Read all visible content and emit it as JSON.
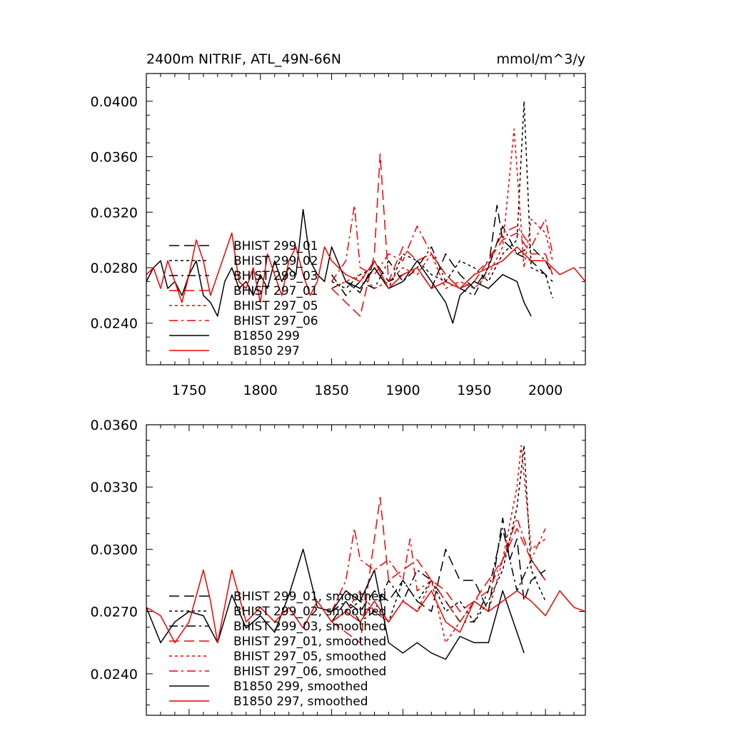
{
  "chart_data": [
    {
      "type": "line",
      "title_left": "2400m NITRIF, ATL_49N-66N",
      "title_right": "mmol/m^3/y",
      "xlim": [
        1720,
        2028
      ],
      "ylim": [
        0.021,
        0.042
      ],
      "xticks": [
        1750,
        1800,
        1850,
        1900,
        1950,
        2000
      ],
      "xtick_labels": [
        "1750",
        "1800",
        "1850",
        "1900",
        "1950",
        "2000"
      ],
      "yticks": [
        0.024,
        0.028,
        0.032,
        0.036,
        0.04
      ],
      "ytick_labels": [
        "0.0240",
        "0.0280",
        "0.0320",
        "0.0360",
        "0.0400"
      ],
      "legend_position": "lower-left",
      "series": [
        {
          "name": "BHIST 299_01",
          "color": "#000000",
          "dash": "long-dash",
          "x": [
            1850,
            1860,
            1870,
            1880,
            1890,
            1900,
            1910,
            1920,
            1930,
            1940,
            1950,
            1960,
            1966,
            1970,
            1980,
            1990,
            2000,
            2005
          ],
          "y": [
            0.0265,
            0.027,
            0.0262,
            0.0285,
            0.027,
            0.0275,
            0.028,
            0.0265,
            0.029,
            0.0275,
            0.0265,
            0.028,
            0.0325,
            0.03,
            0.029,
            0.0285,
            0.0275,
            0.027
          ]
        },
        {
          "name": "BHIST 299_02",
          "color": "#000000",
          "dash": "short-dash",
          "x": [
            1850,
            1860,
            1870,
            1880,
            1890,
            1900,
            1910,
            1920,
            1930,
            1940,
            1950,
            1960,
            1970,
            1980,
            1985,
            1990,
            2000,
            2005
          ],
          "y": [
            0.027,
            0.0265,
            0.0275,
            0.028,
            0.0265,
            0.029,
            0.0285,
            0.0275,
            0.027,
            0.0285,
            0.028,
            0.027,
            0.029,
            0.03,
            0.04,
            0.028,
            0.0275,
            0.0258
          ]
        },
        {
          "name": "BHIST 299_03",
          "color": "#000000",
          "dash": "dash-dot",
          "x": [
            1850,
            1860,
            1870,
            1880,
            1890,
            1900,
            1910,
            1920,
            1930,
            1940,
            1950,
            1960,
            1970,
            1980,
            1990,
            2000,
            2005
          ],
          "y": [
            0.0275,
            0.026,
            0.027,
            0.0265,
            0.0285,
            0.027,
            0.028,
            0.0295,
            0.027,
            0.0265,
            0.026,
            0.028,
            0.031,
            0.029,
            0.0295,
            0.0285,
            0.0275
          ]
        },
        {
          "name": "BHIST 297_01",
          "color": "#ee0000",
          "dash": "long-dash",
          "x": [
            1850,
            1860,
            1865,
            1870,
            1880,
            1884,
            1890,
            1900,
            1910,
            1920,
            1930,
            1940,
            1950,
            1960,
            1970,
            1980,
            1990,
            2000,
            2005
          ],
          "y": [
            0.0265,
            0.0255,
            0.025,
            0.0245,
            0.029,
            0.0362,
            0.027,
            0.0295,
            0.0285,
            0.029,
            0.0275,
            0.0265,
            0.027,
            0.0285,
            0.03,
            0.0305,
            0.029,
            0.029,
            0.0275
          ]
        },
        {
          "name": "BHIST 297_05",
          "color": "#ee0000",
          "dash": "short-dash",
          "x": [
            1850,
            1860,
            1870,
            1880,
            1890,
            1900,
            1910,
            1920,
            1930,
            1940,
            1950,
            1960,
            1970,
            1978,
            1985,
            1990,
            2000,
            2005
          ],
          "y": [
            0.0265,
            0.027,
            0.0275,
            0.0265,
            0.027,
            0.028,
            0.0275,
            0.029,
            0.0265,
            0.027,
            0.0265,
            0.0275,
            0.0295,
            0.038,
            0.028,
            0.0315,
            0.0305,
            0.0285
          ]
        },
        {
          "name": "BHIST 297_06",
          "color": "#ee0000",
          "dash": "dash-dot",
          "x": [
            1850,
            1860,
            1866,
            1870,
            1880,
            1890,
            1900,
            1910,
            1920,
            1930,
            1940,
            1950,
            1960,
            1970,
            1980,
            1990,
            2000,
            2005
          ],
          "y": [
            0.027,
            0.0285,
            0.0325,
            0.028,
            0.0275,
            0.029,
            0.0285,
            0.031,
            0.029,
            0.0275,
            0.0265,
            0.0275,
            0.0285,
            0.0305,
            0.031,
            0.0295,
            0.0315,
            0.029
          ]
        },
        {
          "name": "B1850 299",
          "color": "#000000",
          "dash": "solid",
          "x": [
            1720,
            1725,
            1730,
            1735,
            1740,
            1745,
            1750,
            1755,
            1760,
            1765,
            1770,
            1775,
            1780,
            1785,
            1790,
            1795,
            1800,
            1805,
            1810,
            1815,
            1820,
            1825,
            1830,
            1835,
            1840,
            1845,
            1850,
            1860,
            1870,
            1880,
            1890,
            1900,
            1910,
            1920,
            1930,
            1935,
            1940,
            1950,
            1960,
            1970,
            1980,
            1985,
            1990
          ],
          "y": [
            0.027,
            0.028,
            0.0285,
            0.0265,
            0.027,
            0.026,
            0.0275,
            0.0285,
            0.026,
            0.0255,
            0.0245,
            0.027,
            0.028,
            0.0265,
            0.027,
            0.026,
            0.0275,
            0.0265,
            0.0285,
            0.027,
            0.028,
            0.0275,
            0.0322,
            0.0285,
            0.0275,
            0.027,
            0.0295,
            0.027,
            0.0265,
            0.028,
            0.0265,
            0.027,
            0.0285,
            0.027,
            0.0255,
            0.024,
            0.026,
            0.027,
            0.0265,
            0.0275,
            0.027,
            0.0255,
            0.0245
          ]
        },
        {
          "name": "B1850 297",
          "color": "#ee0000",
          "dash": "solid",
          "x": [
            1720,
            1725,
            1730,
            1735,
            1740,
            1745,
            1750,
            1755,
            1760,
            1765,
            1770,
            1775,
            1780,
            1785,
            1790,
            1795,
            1800,
            1805,
            1810,
            1815,
            1820,
            1825,
            1830,
            1835,
            1840,
            1845,
            1850,
            1860,
            1870,
            1880,
            1890,
            1900,
            1910,
            1920,
            1930,
            1940,
            1950,
            1960,
            1970,
            1980,
            1990,
            2000,
            2010,
            2020,
            2028
          ],
          "y": [
            0.0275,
            0.028,
            0.0265,
            0.0285,
            0.027,
            0.0255,
            0.0275,
            0.03,
            0.0285,
            0.026,
            0.0275,
            0.029,
            0.0305,
            0.027,
            0.0265,
            0.028,
            0.0255,
            0.029,
            0.0275,
            0.026,
            0.0285,
            0.0295,
            0.0275,
            0.026,
            0.027,
            0.0295,
            0.0285,
            0.0275,
            0.027,
            0.0285,
            0.0265,
            0.0275,
            0.028,
            0.0265,
            0.027,
            0.0265,
            0.0275,
            0.028,
            0.0285,
            0.0295,
            0.0285,
            0.0285,
            0.0275,
            0.028,
            0.027
          ]
        }
      ]
    },
    {
      "type": "line",
      "xlim": [
        1720,
        2028
      ],
      "ylim": [
        0.022,
        0.036
      ],
      "xticks": [
        1750,
        1800,
        1850,
        1900,
        1950,
        2000
      ],
      "yticks": [
        0.024,
        0.027,
        0.03,
        0.033,
        0.036
      ],
      "ytick_labels": [
        "0.0240",
        "0.0270",
        "0.0300",
        "0.0330",
        "0.0360"
      ],
      "legend_position": "lower-left",
      "series": [
        {
          "name": "BHIST 299_01, smoothed",
          "color": "#000000",
          "dash": "long-dash",
          "x": [
            1850,
            1860,
            1870,
            1880,
            1890,
            1900,
            1910,
            1920,
            1930,
            1940,
            1950,
            1960,
            1970,
            1975,
            1980,
            1985,
            1990,
            2000
          ],
          "y": [
            0.0265,
            0.0275,
            0.027,
            0.028,
            0.0275,
            0.0285,
            0.0275,
            0.027,
            0.03,
            0.0285,
            0.0285,
            0.027,
            0.0315,
            0.0295,
            0.0305,
            0.0275,
            0.0285,
            0.029
          ]
        },
        {
          "name": "BHIST 299_02, smoothed",
          "color": "#000000",
          "dash": "short-dash",
          "x": [
            1850,
            1860,
            1870,
            1880,
            1890,
            1900,
            1910,
            1920,
            1930,
            1940,
            1950,
            1960,
            1970,
            1980,
            1985,
            1990,
            2000
          ],
          "y": [
            0.0265,
            0.027,
            0.0275,
            0.027,
            0.0265,
            0.0285,
            0.0275,
            0.0285,
            0.027,
            0.0275,
            0.0265,
            0.0275,
            0.029,
            0.032,
            0.035,
            0.029,
            0.0275
          ]
        },
        {
          "name": "BHIST 299_03, smoothed",
          "color": "#000000",
          "dash": "dash-dot",
          "x": [
            1850,
            1860,
            1870,
            1880,
            1890,
            1900,
            1910,
            1920,
            1930,
            1940,
            1950,
            1960,
            1970,
            1980,
            1990,
            2000
          ],
          "y": [
            0.027,
            0.0275,
            0.0265,
            0.027,
            0.0285,
            0.0275,
            0.029,
            0.0285,
            0.0275,
            0.0265,
            0.0265,
            0.028,
            0.031,
            0.028,
            0.0295,
            0.0285
          ]
        },
        {
          "name": "BHIST 297_01, smoothed",
          "color": "#ee0000",
          "dash": "long-dash",
          "x": [
            1850,
            1860,
            1870,
            1875,
            1884,
            1890,
            1900,
            1910,
            1920,
            1930,
            1940,
            1950,
            1960,
            1970,
            1980,
            1990,
            2000
          ],
          "y": [
            0.0265,
            0.026,
            0.0255,
            0.028,
            0.0325,
            0.0285,
            0.029,
            0.0295,
            0.0285,
            0.028,
            0.027,
            0.0275,
            0.0285,
            0.0295,
            0.031,
            0.0295,
            0.0285
          ]
        },
        {
          "name": "BHIST 297_05, smoothed",
          "color": "#ee0000",
          "dash": "short-dash",
          "x": [
            1850,
            1860,
            1870,
            1880,
            1890,
            1900,
            1910,
            1920,
            1930,
            1940,
            1950,
            1960,
            1970,
            1980,
            1983,
            1990,
            2000
          ],
          "y": [
            0.0265,
            0.027,
            0.028,
            0.027,
            0.0265,
            0.0275,
            0.027,
            0.0285,
            0.0255,
            0.0265,
            0.0275,
            0.027,
            0.0295,
            0.033,
            0.035,
            0.03,
            0.0305
          ]
        },
        {
          "name": "BHIST 297_06, smoothed",
          "color": "#ee0000",
          "dash": "dash-dot",
          "x": [
            1850,
            1860,
            1866,
            1870,
            1880,
            1890,
            1900,
            1905,
            1910,
            1920,
            1930,
            1940,
            1950,
            1960,
            1970,
            1980,
            1990,
            2000
          ],
          "y": [
            0.027,
            0.0285,
            0.031,
            0.0295,
            0.029,
            0.0295,
            0.0285,
            0.0305,
            0.028,
            0.0285,
            0.0275,
            0.0265,
            0.0275,
            0.028,
            0.0295,
            0.0315,
            0.0295,
            0.031
          ]
        },
        {
          "name": "B1850 299, smoothed",
          "color": "#000000",
          "dash": "solid",
          "x": [
            1720,
            1730,
            1740,
            1750,
            1760,
            1770,
            1780,
            1790,
            1800,
            1810,
            1820,
            1830,
            1840,
            1850,
            1860,
            1870,
            1880,
            1890,
            1900,
            1910,
            1920,
            1930,
            1940,
            1950,
            1960,
            1970,
            1980,
            1985
          ],
          "y": [
            0.0272,
            0.0255,
            0.0265,
            0.027,
            0.0268,
            0.0255,
            0.0278,
            0.0262,
            0.0268,
            0.026,
            0.0278,
            0.03,
            0.0272,
            0.027,
            0.028,
            0.0275,
            0.029,
            0.0255,
            0.025,
            0.0255,
            0.025,
            0.0247,
            0.0258,
            0.0255,
            0.0255,
            0.028,
            0.026,
            0.025
          ]
        },
        {
          "name": "B1850 297, smoothed",
          "color": "#ee0000",
          "dash": "solid",
          "x": [
            1720,
            1730,
            1740,
            1750,
            1760,
            1765,
            1770,
            1780,
            1790,
            1800,
            1810,
            1820,
            1830,
            1840,
            1850,
            1860,
            1870,
            1880,
            1890,
            1900,
            1910,
            1920,
            1930,
            1940,
            1950,
            1960,
            1970,
            1980,
            1990,
            2000,
            2010,
            2020,
            2028
          ],
          "y": [
            0.0272,
            0.0268,
            0.0255,
            0.0265,
            0.029,
            0.0275,
            0.0255,
            0.029,
            0.0265,
            0.0272,
            0.0265,
            0.0272,
            0.0262,
            0.0275,
            0.0265,
            0.027,
            0.0265,
            0.0275,
            0.0265,
            0.0275,
            0.027,
            0.028,
            0.0265,
            0.026,
            0.0275,
            0.027,
            0.0275,
            0.028,
            0.0275,
            0.0268,
            0.028,
            0.0272,
            0.027
          ]
        }
      ]
    }
  ]
}
